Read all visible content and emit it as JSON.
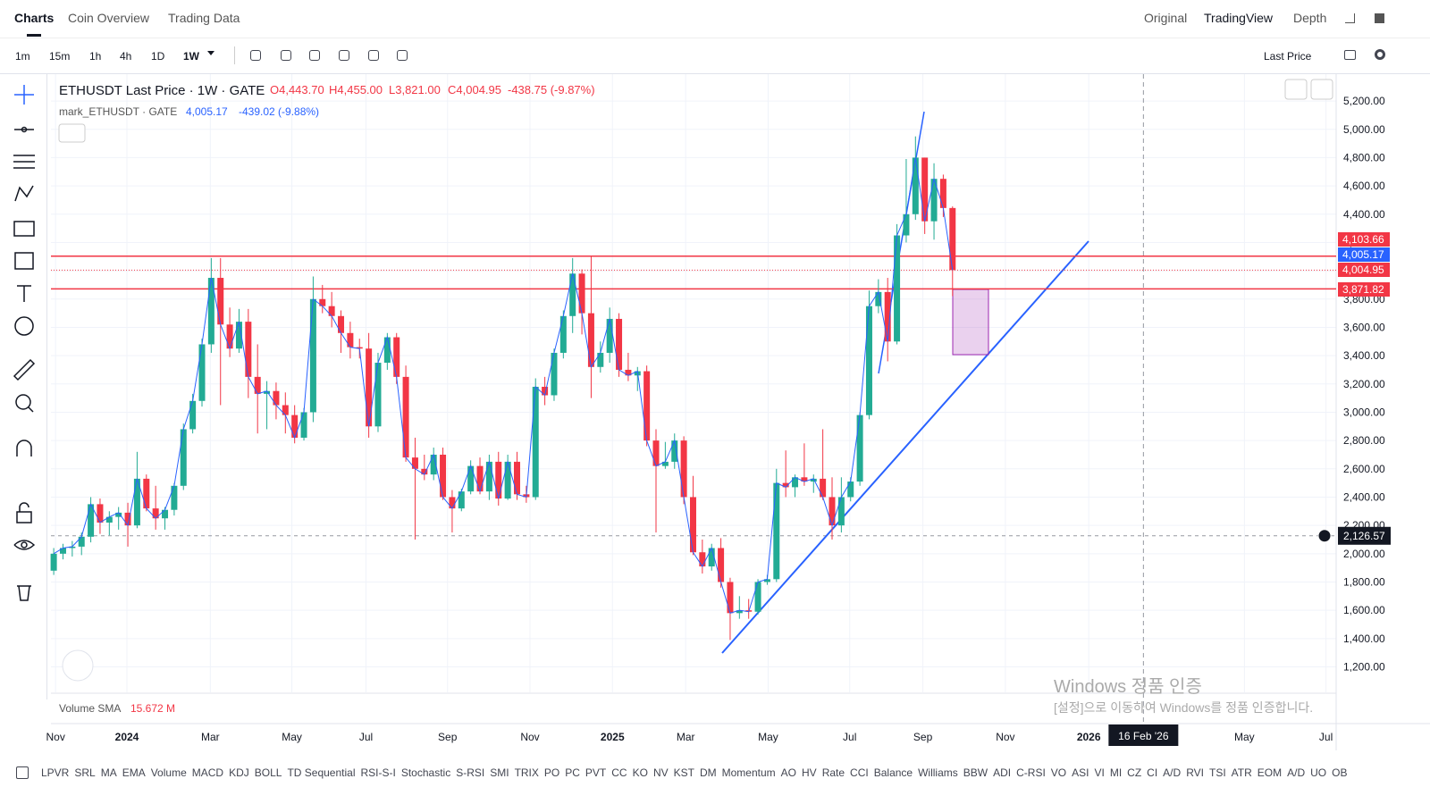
{
  "nav": {
    "left_tabs": [
      "Charts",
      "Coin Overview",
      "Trading Data"
    ],
    "right_tabs": [
      "Original",
      "TradingView",
      "Depth"
    ]
  },
  "toolbar": {
    "timeframes": [
      "1m",
      "15m",
      "1h",
      "4h",
      "1D",
      "1W"
    ],
    "price_source": "Last Price"
  },
  "legend": {
    "symbol": "ETHUSDT Last Price · 1W · GATE",
    "ohlc": [
      "O4,443.70",
      "H4,455.00",
      "L3,821.00",
      "C4,004.95",
      "-438.75 (-9.87%)"
    ],
    "mark_symbol": "mark_ETHUSDT · GATE",
    "mark_value": "4,005.17",
    "mark_change": "-439.02 (-9.88%)"
  },
  "volume": {
    "label": "Volume SMA",
    "value": "15.672 M"
  },
  "indicators": [
    "LPVR",
    "SRL",
    "MA",
    "EMA",
    "Volume",
    "MACD",
    "KDJ",
    "BOLL",
    "TD Sequential",
    "RSI-S-I",
    "Stochastic",
    "S-RSI",
    "SMI",
    "TRIX",
    "PO",
    "PC",
    "PVT",
    "CC",
    "KO",
    "NV",
    "KST",
    "DM",
    "Momentum",
    "AO",
    "HV",
    "Rate",
    "CCI",
    "Balance",
    "Williams",
    "BBW",
    "ADI",
    "C-RSI",
    "VO",
    "ASI",
    "VI",
    "MI",
    "CZ",
    "CI",
    "A/D",
    "RVI",
    "TSI",
    "ATR",
    "EOM",
    "A/D",
    "UO",
    "OB"
  ],
  "watermark": {
    "title": "Windows 정품 인증",
    "subtitle": "[설정]으로 이동하여 Windows를 정품 인증합니다."
  },
  "chart_data": {
    "type": "candlestick",
    "up_color": "#22ab94",
    "down_color": "#f23645",
    "line_color": "#2962ff",
    "ylim": [
      1020,
      5390
    ],
    "xlim": [
      -0.3,
      138.4
    ],
    "grid": true,
    "yticks": [
      {
        "value": 1200,
        "label": "1,200.00"
      },
      {
        "value": 1400,
        "label": "1,400.00"
      },
      {
        "value": 1600,
        "label": "1,600.00"
      },
      {
        "value": 1800,
        "label": "1,800.00"
      },
      {
        "value": 2000,
        "label": "2,000.00"
      },
      {
        "value": 2200,
        "label": "2,200.00"
      },
      {
        "value": 2400,
        "label": "2,400.00"
      },
      {
        "value": 2600,
        "label": "2,600.00"
      },
      {
        "value": 2800,
        "label": "2,800.00"
      },
      {
        "value": 3000,
        "label": "3,000.00"
      },
      {
        "value": 3200,
        "label": "3,200.00"
      },
      {
        "value": 3400,
        "label": "3,400.00"
      },
      {
        "value": 3600,
        "label": "3,600.00"
      },
      {
        "value": 3800,
        "label": "3,800.00"
      },
      {
        "value": 4000,
        "label": "4,000.00"
      },
      {
        "value": 4200,
        "label": "4,200.00"
      },
      {
        "value": 4400,
        "label": "4,400.00"
      },
      {
        "value": 4600,
        "label": "4,600.00"
      },
      {
        "value": 4800,
        "label": "4,800.00"
      },
      {
        "value": 5000,
        "label": "5,000.00"
      },
      {
        "value": 5200,
        "label": "5,200.00"
      }
    ],
    "xticks": [
      {
        "value": 0.2,
        "label": "Nov"
      },
      {
        "value": 7.9,
        "label": "2024"
      },
      {
        "value": 16.9,
        "label": "Mar"
      },
      {
        "value": 25.7,
        "label": "May"
      },
      {
        "value": 33.7,
        "label": "Jul"
      },
      {
        "value": 42.5,
        "label": "Sep"
      },
      {
        "value": 51.4,
        "label": "Nov"
      },
      {
        "value": 60.3,
        "label": "2025"
      },
      {
        "value": 68.2,
        "label": "Mar"
      },
      {
        "value": 77.1,
        "label": "May"
      },
      {
        "value": 85.9,
        "label": "Jul"
      },
      {
        "value": 93.8,
        "label": "Sep"
      },
      {
        "value": 102.7,
        "label": "Nov"
      },
      {
        "value": 111.7,
        "label": "2026"
      },
      {
        "value": 128.5,
        "label": "May"
      },
      {
        "value": 137.3,
        "label": "Jul"
      }
    ],
    "price_lines": [
      {
        "value": 4103.66,
        "label": "4,103.66",
        "color": "#f23645",
        "style": "solid"
      },
      {
        "value": 4005.17,
        "label": "4,005.17",
        "color": "#2962ff",
        "style": "none"
      },
      {
        "value": 4004.95,
        "label": "4,004.95",
        "color": "#f23645",
        "style": "dotted"
      },
      {
        "value": 3871.82,
        "label": "3,871.82",
        "color": "#f23645",
        "style": "solid"
      }
    ],
    "crosshair": {
      "x": 117.6,
      "x_label": "16 Feb '26",
      "y": 2126.57,
      "y_label": "2,126.57"
    },
    "candles": [
      [
        1880,
        2040,
        1850,
        2000
      ],
      [
        2000,
        2070,
        1960,
        2040
      ],
      [
        2040,
        2090,
        1980,
        2050
      ],
      [
        2050,
        2150,
        1990,
        2120
      ],
      [
        2120,
        2400,
        2080,
        2350
      ],
      [
        2350,
        2390,
        2140,
        2220
      ],
      [
        2220,
        2300,
        2130,
        2260
      ],
      [
        2260,
        2330,
        2170,
        2290
      ],
      [
        2290,
        2360,
        2050,
        2200
      ],
      [
        2200,
        2720,
        2180,
        2530
      ],
      [
        2530,
        2560,
        2300,
        2320
      ],
      [
        2320,
        2480,
        2170,
        2250
      ],
      [
        2250,
        2330,
        2170,
        2310
      ],
      [
        2310,
        2500,
        2270,
        2480
      ],
      [
        2480,
        2920,
        2450,
        2880
      ],
      [
        2880,
        3130,
        2850,
        3080
      ],
      [
        3080,
        3520,
        3040,
        3480
      ],
      [
        3480,
        4090,
        3420,
        3950
      ],
      [
        3950,
        4090,
        3050,
        3620
      ],
      [
        3620,
        3740,
        3390,
        3450
      ],
      [
        3450,
        3730,
        3420,
        3640
      ],
      [
        3640,
        3730,
        3100,
        3250
      ],
      [
        3250,
        3480,
        2850,
        3130
      ],
      [
        3130,
        3220,
        2880,
        3150
      ],
      [
        3150,
        3210,
        2950,
        3050
      ],
      [
        3050,
        3140,
        2850,
        2980
      ],
      [
        2980,
        3050,
        2780,
        2820
      ],
      [
        2820,
        3030,
        2800,
        3000
      ],
      [
        3000,
        3960,
        2930,
        3800
      ],
      [
        3800,
        3900,
        3700,
        3750
      ],
      [
        3750,
        3850,
        3600,
        3680
      ],
      [
        3680,
        3720,
        3420,
        3560
      ],
      [
        3560,
        3640,
        3380,
        3460
      ],
      [
        3460,
        3520,
        3380,
        3450
      ],
      [
        3450,
        3560,
        2820,
        2900
      ],
      [
        2900,
        3420,
        2860,
        3350
      ],
      [
        3350,
        3560,
        3300,
        3530
      ],
      [
        3530,
        3560,
        3200,
        3250
      ],
      [
        3250,
        3330,
        2650,
        2680
      ],
      [
        2680,
        2820,
        2100,
        2600
      ],
      [
        2600,
        2700,
        2520,
        2560
      ],
      [
        2560,
        2750,
        2520,
        2700
      ],
      [
        2700,
        2750,
        2380,
        2400
      ],
      [
        2400,
        2450,
        2150,
        2320
      ],
      [
        2320,
        2460,
        2300,
        2440
      ],
      [
        2440,
        2660,
        2420,
        2620
      ],
      [
        2620,
        2680,
        2420,
        2440
      ],
      [
        2440,
        2700,
        2380,
        2650
      ],
      [
        2650,
        2720,
        2340,
        2390
      ],
      [
        2390,
        2700,
        2380,
        2650
      ],
      [
        2650,
        2720,
        2380,
        2420
      ],
      [
        2420,
        2480,
        2360,
        2400
      ],
      [
        2400,
        3240,
        2380,
        3180
      ],
      [
        3180,
        3250,
        3050,
        3120
      ],
      [
        3120,
        3450,
        3080,
        3420
      ],
      [
        3420,
        3720,
        3380,
        3680
      ],
      [
        3680,
        4090,
        3560,
        3980
      ],
      [
        3980,
        4010,
        3550,
        3700
      ],
      [
        3700,
        4100,
        3100,
        3320
      ],
      [
        3320,
        3500,
        3280,
        3420
      ],
      [
        3420,
        3740,
        3350,
        3660
      ],
      [
        3660,
        3700,
        3250,
        3300
      ],
      [
        3300,
        3420,
        3220,
        3260
      ],
      [
        3260,
        3320,
        3150,
        3290
      ],
      [
        3290,
        3330,
        2760,
        2800
      ],
      [
        2800,
        2880,
        2150,
        2620
      ],
      [
        2620,
        2790,
        2600,
        2650
      ],
      [
        2650,
        2850,
        2600,
        2800
      ],
      [
        2800,
        2830,
        2350,
        2400
      ],
      [
        2400,
        2550,
        1990,
        2010
      ],
      [
        2010,
        2100,
        1860,
        1910
      ],
      [
        1910,
        2070,
        1880,
        2040
      ],
      [
        2040,
        2110,
        1760,
        1800
      ],
      [
        1800,
        1830,
        1390,
        1580
      ],
      [
        1580,
        1700,
        1540,
        1600
      ],
      [
        1600,
        1680,
        1540,
        1590
      ],
      [
        1590,
        1820,
        1570,
        1800
      ],
      [
        1800,
        1850,
        1780,
        1820
      ],
      [
        1820,
        2600,
        1800,
        2500
      ],
      [
        2500,
        2730,
        2400,
        2470
      ],
      [
        2470,
        2560,
        2400,
        2540
      ],
      [
        2540,
        2780,
        2480,
        2510
      ],
      [
        2510,
        2560,
        2430,
        2530
      ],
      [
        2530,
        2880,
        2380,
        2400
      ],
      [
        2400,
        2540,
        2100,
        2200
      ],
      [
        2200,
        2540,
        2150,
        2400
      ],
      [
        2400,
        2540,
        2370,
        2510
      ],
      [
        2510,
        3000,
        2480,
        2980
      ],
      [
        2980,
        3860,
        2950,
        3750
      ],
      [
        3750,
        3940,
        3700,
        3850
      ],
      [
        3850,
        3950,
        3360,
        3500
      ],
      [
        3500,
        4330,
        3480,
        4250
      ],
      [
        4250,
        4790,
        4200,
        4400
      ],
      [
        4400,
        4950,
        4360,
        4800
      ],
      [
        4800,
        4800,
        4260,
        4350
      ],
      [
        4350,
        4760,
        4220,
        4650
      ],
      [
        4650,
        4680,
        4380,
        4443.7
      ],
      [
        4443.7,
        4455,
        3821,
        4004.95
      ]
    ]
  }
}
